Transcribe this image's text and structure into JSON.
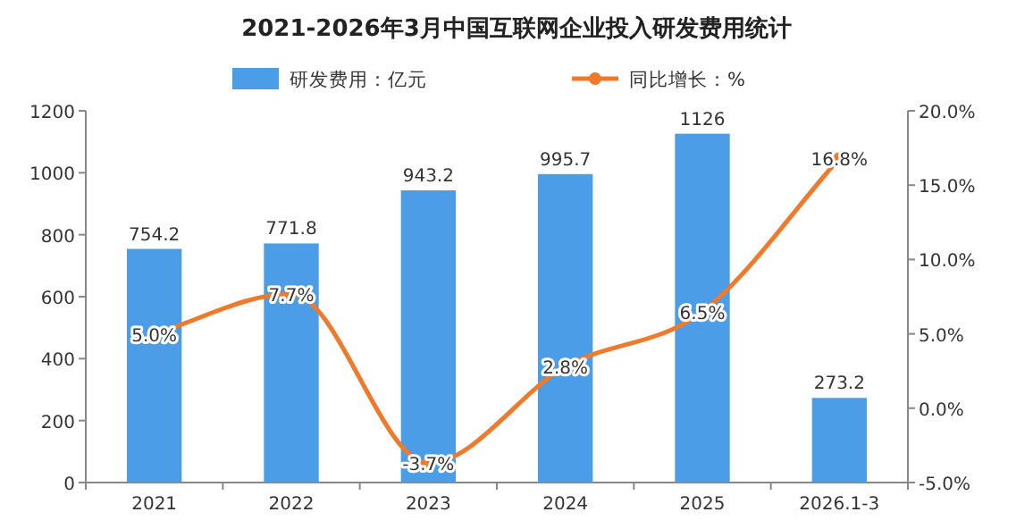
{
  "chart_data": {
    "type": "bar",
    "title": "2021-2026年3月中国互联网企业投入研发费用统计",
    "categories": [
      "2021",
      "2022",
      "2023",
      "2024",
      "2025",
      "2026.1-3"
    ],
    "series": [
      {
        "name": "研发费用：亿元",
        "color": "#4a9de6",
        "values": [
          754.2,
          771.8,
          943.2,
          995.7,
          1126,
          273.2
        ],
        "value_labels": [
          "754.2",
          "771.8",
          "943.2",
          "995.7",
          "1126",
          "273.2"
        ]
      },
      {
        "name": "同比增长：%",
        "type": "line",
        "axis": "y2",
        "color": "#f07a2c",
        "marker": "circle",
        "values": [
          5.0,
          7.7,
          -3.7,
          2.8,
          6.5,
          16.8
        ],
        "value_labels": [
          "5.0%",
          "7.7%",
          "-3.7%",
          "2.8%",
          "6.5%",
          "16.8%"
        ]
      }
    ],
    "ylim": [
      0,
      1200
    ],
    "yticks": [
      0,
      200,
      400,
      600,
      800,
      1000,
      1200
    ],
    "y2lim": [
      -5,
      20
    ],
    "y2ticks": [
      {
        "value": -5,
        "label": "-5.0%"
      },
      {
        "value": 0,
        "label": "0.0%"
      },
      {
        "value": 5,
        "label": "5.0%"
      },
      {
        "value": 10,
        "label": "10.0%"
      },
      {
        "value": 15,
        "label": "15.0%"
      },
      {
        "value": 20,
        "label": "20.0%"
      }
    ],
    "legend": "top",
    "grid": false
  }
}
